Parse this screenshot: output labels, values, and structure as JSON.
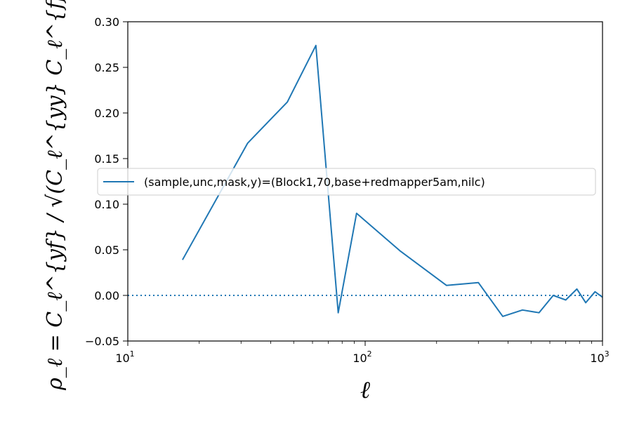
{
  "chart_data": {
    "type": "line",
    "x_scale": "log",
    "xlim": [
      10,
      1000
    ],
    "ylim": [
      -0.05,
      0.3
    ],
    "xlabel": "ℓ",
    "ylabel": "ρ_ℓ = C_ℓ^{yf} / √(C_ℓ^{yy} C_ℓ^{ff})",
    "x_ticks": [
      {
        "value": 10,
        "base": "10",
        "exp": "1"
      },
      {
        "value": 100,
        "base": "10",
        "exp": "2"
      },
      {
        "value": 1000,
        "base": "10",
        "exp": "3"
      }
    ],
    "y_ticks": [
      {
        "value": -0.05,
        "label": "−0.05"
      },
      {
        "value": 0.0,
        "label": "0.00"
      },
      {
        "value": 0.05,
        "label": "0.05"
      },
      {
        "value": 0.1,
        "label": "0.10"
      },
      {
        "value": 0.15,
        "label": "0.15"
      },
      {
        "value": 0.2,
        "label": "0.20"
      },
      {
        "value": 0.25,
        "label": "0.25"
      },
      {
        "value": 0.3,
        "label": "0.30"
      }
    ],
    "grid": false,
    "legend_position": "center-right",
    "series": [
      {
        "name": "(sample,unc,mask,y)=(Block1,70,base+redmapper5am,nilc)",
        "color": "#1f77b4",
        "style": "solid",
        "x": [
          17,
          32,
          47,
          62,
          77,
          92,
          140,
          220,
          300,
          380,
          460,
          540,
          620,
          700,
          780,
          850,
          930,
          1000
        ],
        "y": [
          0.039,
          0.167,
          0.212,
          0.274,
          -0.019,
          0.09,
          0.049,
          0.011,
          0.014,
          -0.023,
          -0.016,
          -0.019,
          0.0,
          -0.005,
          0.007,
          -0.008,
          0.004,
          -0.002
        ]
      },
      {
        "name": "",
        "color": "#1f77b4",
        "style": "dotted",
        "x": [
          10,
          1000
        ],
        "y": [
          0,
          0
        ]
      }
    ]
  }
}
